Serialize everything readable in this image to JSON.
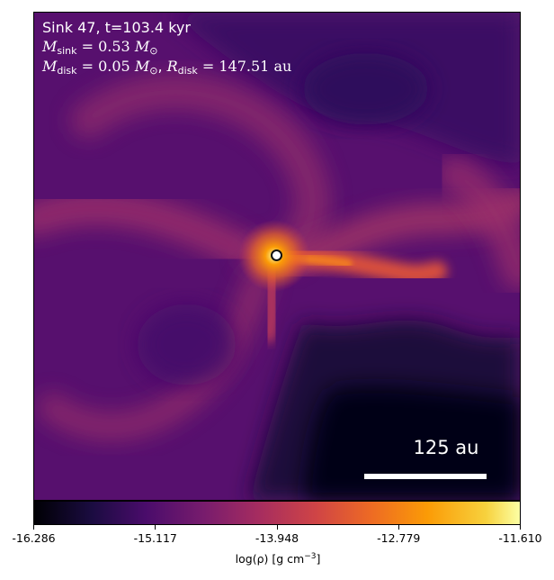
{
  "panel": {
    "title_line": "Sink 47, t=103.4 kyr",
    "sink_mass": {
      "symbol": "M",
      "sub": "sink",
      "value": " = 0.53 ",
      "unit": "M",
      "unit_sub": "⊙"
    },
    "disk_line": {
      "m_symbol": "M",
      "m_sub": "disk",
      "m_value": " = 0.05 ",
      "m_unit": "M",
      "m_unit_sub": "⊙",
      "sep": ", ",
      "r_symbol": "R",
      "r_sub": "disk",
      "r_value": " = 147.51 ",
      "r_unit": "au"
    },
    "scale_bar_label": "125 au"
  },
  "colorbar": {
    "ticks": [
      "-16.286",
      "-15.117",
      "-13.948",
      "-12.779",
      "-11.610"
    ],
    "label_main": "log(ρ) [g cm",
    "label_exp": "−3",
    "label_end": "]",
    "colormap": "inferno"
  }
}
